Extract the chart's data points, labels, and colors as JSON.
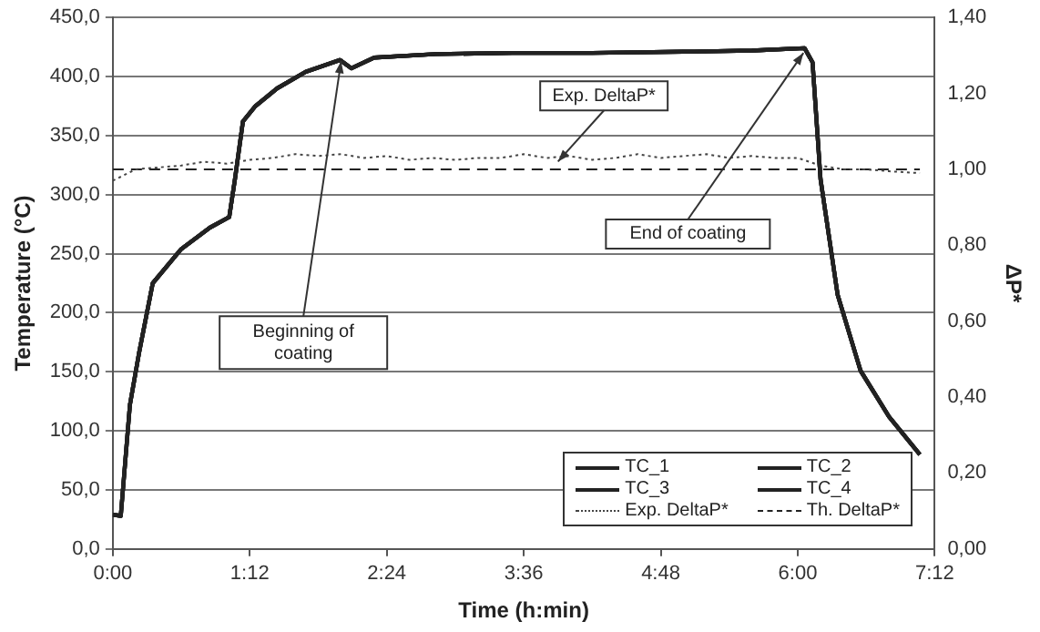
{
  "chart_data": {
    "type": "line",
    "xlabel": "Time (h:min)",
    "ylabel": "Temperature (°C)",
    "y2label": "ΔP*",
    "x": [
      0,
      0.07,
      0.15,
      0.23,
      0.35,
      0.6,
      0.85,
      1.02,
      1.07,
      1.14,
      1.25,
      1.44,
      1.69,
      1.99,
      2.09,
      2.29,
      2.83,
      3.5,
      4.2,
      5.0,
      5.6,
      6.06,
      6.13,
      6.2,
      6.35,
      6.55,
      6.8,
      7.07
    ],
    "series": [
      {
        "name": "TC_1",
        "color": "#222222",
        "values": [
          29,
          28,
          122,
          166,
          225,
          254,
          272,
          281,
          313,
          362,
          375,
          390,
          404,
          414,
          407,
          416,
          419,
          420,
          420,
          421,
          422,
          424,
          412,
          313,
          215,
          151,
          112,
          80
        ]
      },
      {
        "name": "TC_2",
        "color": "#222222",
        "values": [
          29,
          28,
          122,
          166,
          225,
          254,
          272,
          281,
          313,
          362,
          375,
          390,
          404,
          414,
          407,
          416,
          419,
          420,
          420,
          421,
          422,
          424,
          412,
          313,
          215,
          151,
          112,
          80
        ]
      },
      {
        "name": "TC_3",
        "color": "#222222",
        "values": [
          29,
          28,
          122,
          166,
          225,
          254,
          272,
          281,
          313,
          362,
          375,
          390,
          404,
          414,
          407,
          416,
          419,
          420,
          420,
          421,
          422,
          424,
          412,
          313,
          215,
          151,
          112,
          80
        ]
      },
      {
        "name": "TC_4",
        "color": "#222222",
        "values": [
          29,
          28,
          122,
          166,
          225,
          254,
          272,
          281,
          313,
          362,
          375,
          390,
          404,
          414,
          407,
          416,
          419,
          420,
          420,
          421,
          422,
          424,
          412,
          313,
          215,
          151,
          112,
          80
        ]
      },
      {
        "name": "Exp. DeltaP*",
        "color": "#444444",
        "axis": "y2",
        "line_style": "dotted",
        "x": [
          0,
          0.1,
          0.2,
          0.4,
          0.6,
          0.8,
          1.0,
          1.2,
          1.4,
          1.6,
          1.8,
          2.0,
          2.2,
          2.4,
          2.6,
          2.8,
          3.0,
          3.2,
          3.4,
          3.6,
          3.8,
          4.0,
          4.2,
          4.4,
          4.6,
          4.8,
          5.0,
          5.2,
          5.4,
          5.6,
          5.8,
          6.0,
          6.2,
          6.4,
          6.6,
          6.8,
          7.07
        ],
        "values": [
          0.97,
          0.985,
          1.0,
          1.005,
          1.01,
          1.02,
          1.015,
          1.025,
          1.03,
          1.04,
          1.035,
          1.04,
          1.03,
          1.035,
          1.025,
          1.03,
          1.025,
          1.03,
          1.03,
          1.04,
          1.03,
          1.035,
          1.025,
          1.03,
          1.04,
          1.03,
          1.035,
          1.04,
          1.03,
          1.035,
          1.03,
          1.03,
          1.01,
          1.0,
          1.0,
          0.995,
          0.99
        ]
      },
      {
        "name": "Th. DeltaP*",
        "color": "#222222",
        "axis": "y2",
        "line_style": "dashed",
        "x": [
          0,
          7.07
        ],
        "values": [
          1.0,
          1.0
        ]
      }
    ],
    "xlim": [
      0,
      7.2
    ],
    "xticks": [
      {
        "value": 0,
        "label": "0:00"
      },
      {
        "value": 1.2,
        "label": "1:12"
      },
      {
        "value": 2.4,
        "label": "2:24"
      },
      {
        "value": 3.6,
        "label": "3:36"
      },
      {
        "value": 4.8,
        "label": "4:48"
      },
      {
        "value": 6.0,
        "label": "6:00"
      },
      {
        "value": 7.2,
        "label": "7:12"
      }
    ],
    "ylim": [
      0,
      450
    ],
    "yticks": [
      {
        "value": 0,
        "label": "0,0"
      },
      {
        "value": 50,
        "label": "50,0"
      },
      {
        "value": 100,
        "label": "100,0"
      },
      {
        "value": 150,
        "label": "150,0"
      },
      {
        "value": 200,
        "label": "200,0"
      },
      {
        "value": 250,
        "label": "250,0"
      },
      {
        "value": 300,
        "label": "300,0"
      },
      {
        "value": 350,
        "label": "350,0"
      },
      {
        "value": 400,
        "label": "400,0"
      },
      {
        "value": 450,
        "label": "450,0"
      }
    ],
    "y2lim": [
      0,
      1.4
    ],
    "y2ticks": [
      {
        "value": 0,
        "label": "0,00"
      },
      {
        "value": 0.2,
        "label": "0,20"
      },
      {
        "value": 0.4,
        "label": "0,40"
      },
      {
        "value": 0.6,
        "label": "0,60"
      },
      {
        "value": 0.8,
        "label": "0,80"
      },
      {
        "value": 1.0,
        "label": "1,00"
      },
      {
        "value": 1.2,
        "label": "1,20"
      },
      {
        "value": 1.4,
        "label": "1,40"
      }
    ],
    "annotations": [
      {
        "text": "Beginning of coating",
        "x": 2.0,
        "y": 413
      },
      {
        "text": "Exp. DeltaP*",
        "x": 3.9,
        "y": 328
      },
      {
        "text": "End of coating",
        "x": 6.05,
        "y": 420
      }
    ],
    "grid": "y",
    "legend": "bottom right",
    "marker": "none",
    "line_style": "solid"
  }
}
